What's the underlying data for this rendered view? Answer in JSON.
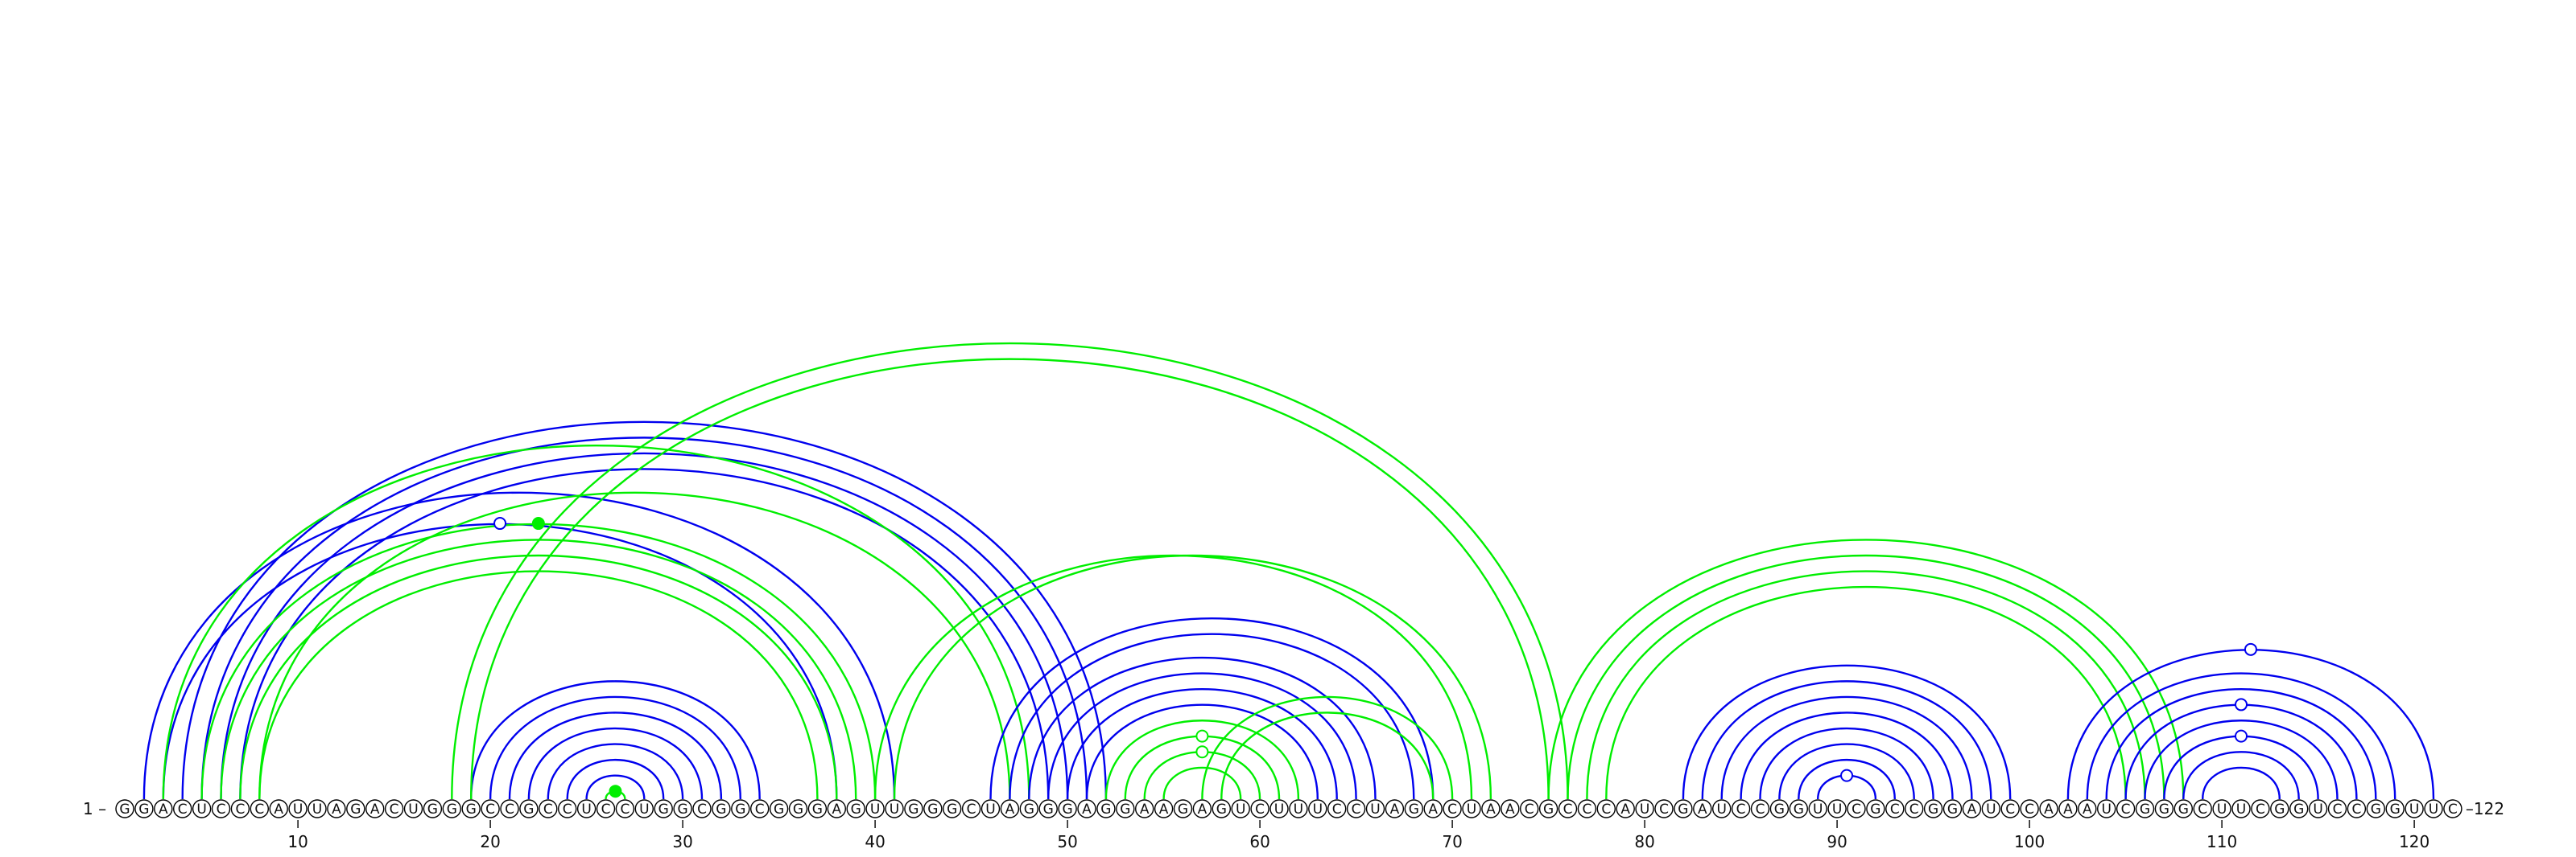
{
  "sequence": "GGACUCCCAUUAGACUGGGCCGCCUCCUGGCGGCGGGAGUUGGGCUAGGGAGGAAGAGUCUUUCCUAGACUAACGCCCAUCGAUCCGGUUCGCCGGAUCCAAAUCGGGCUUCGGUCCGGUUC",
  "start_label": "1 –",
  "end_label": "–122",
  "tick_labels": [
    "10",
    "20",
    "30",
    "40",
    "50",
    "60",
    "70",
    "80",
    "90",
    "100",
    "110",
    "120"
  ],
  "colors": {
    "blue": "#0000ee",
    "green": "#00ee00"
  },
  "arcs": [
    {
      "i": 19,
      "j": 34,
      "color": "blue"
    },
    {
      "i": 20,
      "j": 33,
      "color": "blue"
    },
    {
      "i": 21,
      "j": 32,
      "color": "blue"
    },
    {
      "i": 22,
      "j": 31,
      "color": "blue"
    },
    {
      "i": 23,
      "j": 30,
      "color": "blue"
    },
    {
      "i": 24,
      "j": 29,
      "color": "blue"
    },
    {
      "i": 25,
      "j": 28,
      "color": "blue"
    },
    {
      "i": 26,
      "j": 27,
      "color": "green"
    },
    {
      "i": 2,
      "j": 41,
      "color": "blue"
    },
    {
      "i": 3,
      "j": 38,
      "color": "blue"
    },
    {
      "i": 4,
      "j": 52,
      "color": "blue"
    },
    {
      "i": 5,
      "j": 51,
      "color": "blue"
    },
    {
      "i": 6,
      "j": 50,
      "color": "blue"
    },
    {
      "i": 7,
      "j": 49,
      "color": "blue"
    },
    {
      "i": 3,
      "j": 48,
      "color": "green"
    },
    {
      "i": 5,
      "j": 40,
      "color": "green"
    },
    {
      "i": 6,
      "j": 39,
      "color": "green"
    },
    {
      "i": 7,
      "j": 38,
      "color": "green"
    },
    {
      "i": 8,
      "j": 37,
      "color": "green"
    },
    {
      "i": 8,
      "j": 47,
      "color": "green"
    },
    {
      "i": 18,
      "j": 76,
      "color": "green"
    },
    {
      "i": 19,
      "j": 75,
      "color": "green"
    },
    {
      "i": 41,
      "j": 72,
      "color": "green"
    },
    {
      "i": 40,
      "j": 71,
      "color": "green"
    },
    {
      "i": 46,
      "j": 69,
      "color": "blue"
    },
    {
      "i": 47,
      "j": 68,
      "color": "blue"
    },
    {
      "i": 48,
      "j": 66,
      "color": "blue"
    },
    {
      "i": 49,
      "j": 65,
      "color": "blue"
    },
    {
      "i": 50,
      "j": 64,
      "color": "blue"
    },
    {
      "i": 51,
      "j": 63,
      "color": "blue"
    },
    {
      "i": 52,
      "j": 62,
      "color": "green"
    },
    {
      "i": 53,
      "j": 61,
      "color": "green"
    },
    {
      "i": 54,
      "j": 60,
      "color": "green"
    },
    {
      "i": 55,
      "j": 59,
      "color": "green"
    },
    {
      "i": 57,
      "j": 70,
      "color": "green"
    },
    {
      "i": 58,
      "j": 69,
      "color": "green"
    },
    {
      "i": 75,
      "j": 108,
      "color": "green"
    },
    {
      "i": 76,
      "j": 107,
      "color": "green"
    },
    {
      "i": 77,
      "j": 106,
      "color": "green"
    },
    {
      "i": 78,
      "j": 105,
      "color": "green"
    },
    {
      "i": 82,
      "j": 99,
      "color": "blue"
    },
    {
      "i": 83,
      "j": 98,
      "color": "blue"
    },
    {
      "i": 84,
      "j": 97,
      "color": "blue"
    },
    {
      "i": 85,
      "j": 96,
      "color": "blue"
    },
    {
      "i": 86,
      "j": 95,
      "color": "blue"
    },
    {
      "i": 87,
      "j": 94,
      "color": "blue"
    },
    {
      "i": 88,
      "j": 93,
      "color": "blue"
    },
    {
      "i": 89,
      "j": 92,
      "color": "blue"
    },
    {
      "i": 102,
      "j": 121,
      "color": "blue"
    },
    {
      "i": 103,
      "j": 119,
      "color": "blue"
    },
    {
      "i": 104,
      "j": 118,
      "color": "blue"
    },
    {
      "i": 105,
      "j": 117,
      "color": "blue"
    },
    {
      "i": 106,
      "j": 116,
      "color": "blue"
    },
    {
      "i": 107,
      "j": 115,
      "color": "blue"
    },
    {
      "i": 108,
      "j": 114,
      "color": "blue"
    },
    {
      "i": 109,
      "j": 113,
      "color": "blue"
    }
  ],
  "markers": [
    {
      "after_arc": 7,
      "style": "filled",
      "color": "green"
    },
    {
      "after_arc": 15,
      "style": "filled",
      "color": "green"
    },
    {
      "after_arc": 9,
      "style": "open",
      "color": "blue"
    },
    {
      "after_arc": 31,
      "style": "open",
      "color": "green"
    },
    {
      "after_arc": 32,
      "style": "open",
      "color": "green"
    },
    {
      "after_arc": 47,
      "style": "open",
      "color": "blue"
    },
    {
      "after_arc": 48,
      "style": "open",
      "color": "blue"
    },
    {
      "after_arc": 51,
      "style": "open",
      "color": "blue"
    },
    {
      "after_arc": 53,
      "style": "open",
      "color": "blue"
    }
  ]
}
